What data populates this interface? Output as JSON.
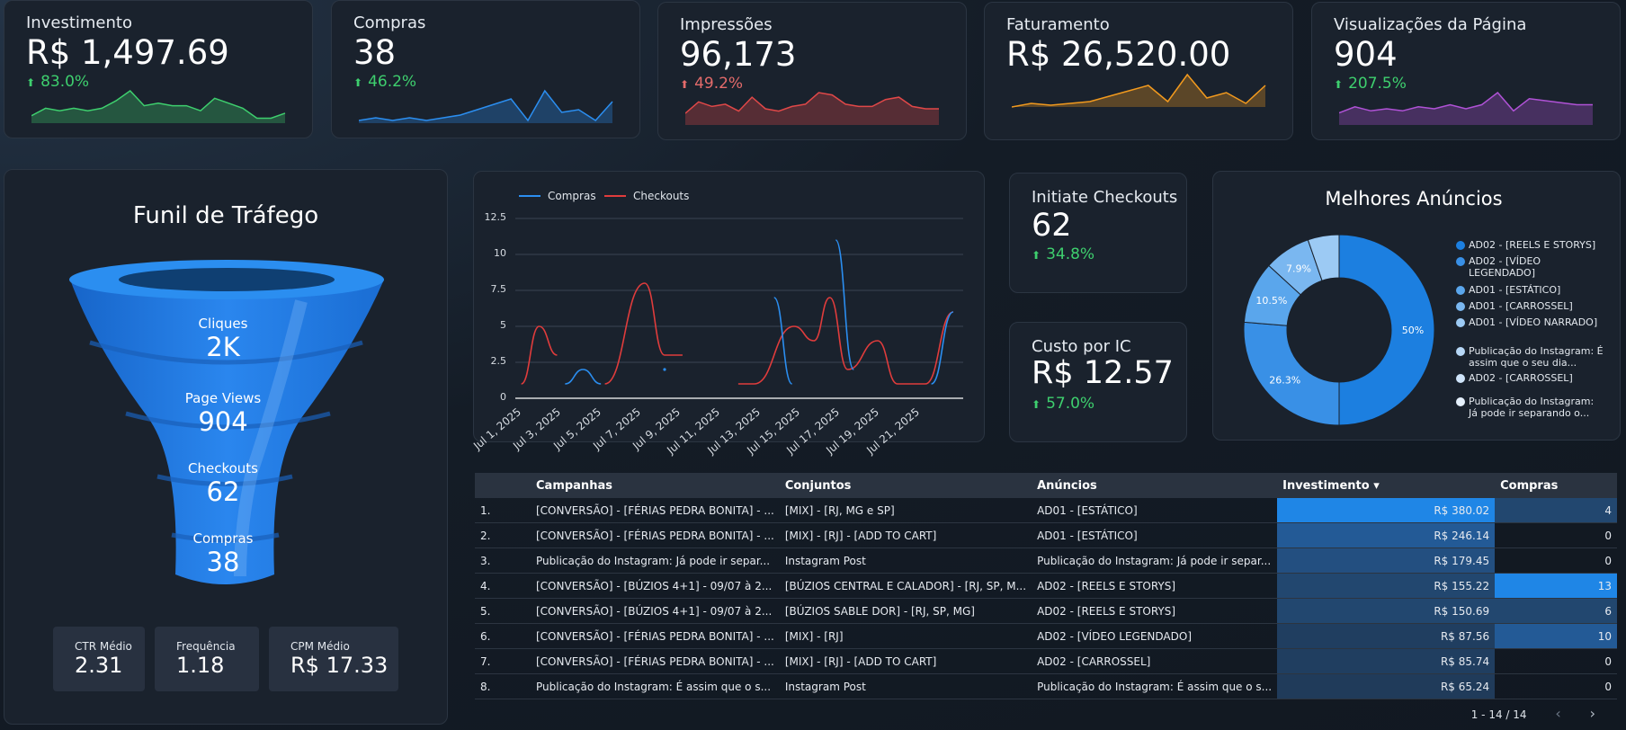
{
  "kpis": [
    {
      "title": "Investimento",
      "value": "R$ 1,497.69",
      "delta": "83.0%",
      "delta_color": "green",
      "spark_color": "#3ecf6e",
      "spark": [
        3,
        6,
        5,
        6,
        5,
        6,
        9,
        13,
        7,
        8,
        7,
        7,
        5,
        10,
        8,
        6,
        2,
        2,
        4
      ]
    },
    {
      "title": "Compras",
      "value": "38",
      "delta": "46.2%",
      "delta_color": "green",
      "spark_color": "#2b8ef0",
      "spark": [
        1,
        2,
        1,
        2,
        1,
        2,
        3,
        5,
        7,
        9,
        1,
        12,
        4,
        5,
        1,
        8
      ]
    },
    {
      "title": "Impressões",
      "value": "96,173",
      "delta": "49.2%",
      "delta_color": "red",
      "spark_color": "#e04848",
      "spark": [
        5,
        10,
        8,
        9,
        6,
        12,
        7,
        6,
        8,
        9,
        14,
        13,
        9,
        8,
        8,
        11,
        12,
        8,
        7,
        7
      ]
    },
    {
      "title": "Faturamento",
      "value": "R$ 26,520.00",
      "delta": "",
      "delta_color": "green",
      "spark_color": "#f29a1e",
      "spark": [
        0,
        2,
        1,
        2,
        3,
        6,
        9,
        12,
        3,
        18,
        5,
        8,
        2,
        12
      ]
    },
    {
      "title": "Visualizações da Página",
      "value": "904",
      "delta": "207.5%",
      "delta_color": "green",
      "spark_color": "#b052d6",
      "spark": [
        6,
        9,
        7,
        8,
        7,
        9,
        8,
        10,
        8,
        10,
        16,
        7,
        13,
        12,
        11,
        10,
        10
      ]
    }
  ],
  "funnel": {
    "title": "Funil de Tráfego",
    "stages": [
      {
        "label": "Cliques",
        "value": "2K"
      },
      {
        "label": "Page Views",
        "value": "904"
      },
      {
        "label": "Checkouts",
        "value": "62"
      },
      {
        "label": "Compras",
        "value": "38"
      }
    ],
    "minis": [
      {
        "label": "CTR Médio",
        "value": "2.31"
      },
      {
        "label": "Frequência",
        "value": "1.18"
      },
      {
        "label": "CPM Médio",
        "value": "R$ 17.33"
      }
    ]
  },
  "chart_data": {
    "type": "line",
    "title": "",
    "x": [
      "Jul 1, 2025",
      "Jul 3, 2025",
      "Jul 5, 2025",
      "Jul 7, 2025",
      "Jul 9, 2025",
      "Jul 11, 2025",
      "Jul 13, 2025",
      "Jul 15, 2025",
      "Jul 17, 2025",
      "Jul 19, 2025",
      "Jul 21, 2025"
    ],
    "ylim": [
      0,
      12.5
    ],
    "yticks": [
      "12.5",
      "10",
      "7.5",
      "5",
      "2.5",
      "0"
    ],
    "series": [
      {
        "name": "Compras",
        "color": "#2b8ef0",
        "points": [
          [
            2.5,
            1
          ],
          [
            3.4,
            2
          ],
          [
            4.3,
            1
          ],
          [
            7.5,
            2
          ],
          [
            13.0,
            7
          ],
          [
            13.9,
            1
          ],
          [
            16.1,
            11
          ],
          [
            17.0,
            2
          ],
          [
            20.9,
            1
          ],
          [
            22.0,
            6
          ]
        ]
      },
      {
        "name": "Checkouts",
        "color": "#e03c3c",
        "points": [
          [
            0.3,
            1
          ],
          [
            1.2,
            5
          ],
          [
            2.1,
            3
          ],
          [
            4.5,
            1
          ],
          [
            6.5,
            8
          ],
          [
            7.5,
            3
          ],
          [
            8.4,
            3
          ],
          [
            11.2,
            1
          ],
          [
            12.0,
            1
          ],
          [
            14.0,
            5
          ],
          [
            15.0,
            4
          ],
          [
            15.8,
            7
          ],
          [
            16.7,
            2
          ],
          [
            18.2,
            4
          ],
          [
            19.2,
            1
          ],
          [
            20.6,
            1
          ],
          [
            22.0,
            6
          ]
        ]
      }
    ]
  },
  "ic": {
    "title": "Initiate Checkouts",
    "value": "62",
    "delta": "34.8%"
  },
  "cpic": {
    "title": "Custo por IC",
    "value": "R$ 12.57",
    "delta": "57.0%"
  },
  "pie": {
    "title": "Melhores Anúncios",
    "slices": [
      {
        "label": "AD02 - [REELS E STORYS]",
        "value": 50,
        "pct": "50%",
        "color": "#1c7fe0"
      },
      {
        "label": "AD02 - [VÍDEO LEGENDADO]",
        "value": 26.3,
        "pct": "26.3%",
        "color": "#3990e6"
      },
      {
        "label": "AD01 - [ESTÁTICO]",
        "value": 10.5,
        "pct": "10.5%",
        "color": "#5aa6ec"
      },
      {
        "label": "AD01 - [CARROSSEL]",
        "value": 7.9,
        "pct": "7.9%",
        "color": "#7ab7f0"
      },
      {
        "label": "AD01 - [VÍDEO NARRADO]",
        "value": 5.3,
        "pct": "",
        "color": "#9ccaf4"
      }
    ],
    "legend": [
      {
        "label": "AD02 - [REELS E STORYS]",
        "color": "#1c7fe0"
      },
      {
        "label": "AD02 - [VÍDEO LEGENDADO]",
        "color": "#3990e6"
      },
      {
        "label": "AD01 - [ESTÁTICO]",
        "color": "#5aa6ec"
      },
      {
        "label": "AD01 - [CARROSSEL]",
        "color": "#7ab7f0"
      },
      {
        "label": "AD01 - [VÍDEO NARRADO]",
        "color": "#9ccaf4"
      },
      {
        "label": "Publicação do Instagram: É assim que o seu dia...",
        "color": "#b7d8f7"
      },
      {
        "label": "AD02 - [CARROSSEL]",
        "color": "#cfe4fa"
      },
      {
        "label": "Publicação do Instagram: Já pode ir separando o...",
        "color": "#e5f0fc"
      }
    ]
  },
  "table": {
    "headers": [
      "",
      "Campanhas",
      "Conjuntos",
      "Anúncios",
      "Investimento ▾",
      "Compras"
    ],
    "rows": [
      [
        "1.",
        "[CONVERSÃO] - [FÉRIAS PEDRA BONITA] - ...",
        "[MIX] - [RJ, MG e SP]",
        "AD01 - [ESTÁTICO]",
        "R$ 380.02",
        "4"
      ],
      [
        "2.",
        "[CONVERSÃO] - [FÉRIAS PEDRA BONITA] - ...",
        "[MIX] - [RJ] - [ADD TO CART]",
        "AD01 - [ESTÁTICO]",
        "R$ 246.14",
        "0"
      ],
      [
        "3.",
        "Publicação do Instagram: Já pode ir separ...",
        "Instagram Post",
        "Publicação do Instagram: Já pode ir separ...",
        "R$ 179.45",
        "0"
      ],
      [
        "4.",
        "[CONVERSÃO] - [BÚZIOS 4+1] - 09/07 à 2...",
        "[BÚZIOS CENTRAL E CALADOR] - [RJ, SP, M...",
        "AD02 - [REELS E STORYS]",
        "R$ 155.22",
        "13"
      ],
      [
        "5.",
        "[CONVERSÃO] - [BÚZIOS 4+1] - 09/07 à 2...",
        "[BÚZIOS SABLE DOR] - [RJ, SP, MG]",
        "AD02 - [REELS E STORYS]",
        "R$ 150.69",
        "6"
      ],
      [
        "6.",
        "[CONVERSÃO] - [FÉRIAS PEDRA BONITA] - ...",
        "[MIX] - [RJ]",
        "AD02 - [VÍDEO LEGENDADO]",
        "R$ 87.56",
        "10"
      ],
      [
        "7.",
        "[CONVERSÃO] - [FÉRIAS PEDRA BONITA] - ...",
        "[MIX] - [RJ] - [ADD TO CART]",
        "AD02 - [CARROSSEL]",
        "R$ 85.74",
        "0"
      ],
      [
        "8.",
        "Publicação do Instagram: É assim que o s...",
        "Instagram Post",
        "Publicação do Instagram: É assim que o s...",
        "R$ 65.24",
        "0"
      ]
    ],
    "invest_shade": [
      "#1f86e6",
      "#235a96",
      "#234f80",
      "#22476f",
      "#22476f",
      "#203e60",
      "#203e60",
      "#203b5a"
    ],
    "compras_shade": [
      "#22476f",
      "",
      "",
      "#1f86e6",
      "#22476f",
      "#235a96",
      "",
      ""
    ],
    "pager": "1 - 14 / 14"
  }
}
